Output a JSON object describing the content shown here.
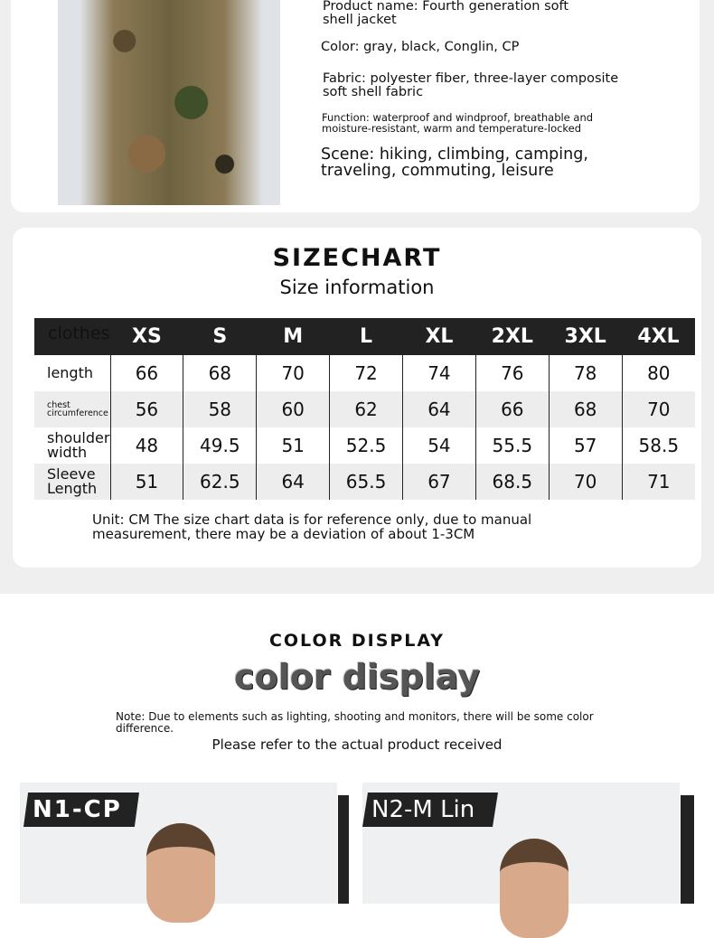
{
  "product": {
    "name": "Product name: Fourth generation soft shell jacket",
    "color": "Color: gray, black, Conglin, CP",
    "fabric": "Fabric: polyester fiber, three-layer composite soft shell fabric",
    "function": "Function: waterproof and windproof, breathable and moisture-resistant, warm and temperature-locked",
    "scene": "Scene: hiking, climbing, camping, traveling, commuting, leisure"
  },
  "size_chart": {
    "title": "SIZECHART",
    "subtitle": "Size information",
    "corner": "clothes",
    "sizes": [
      "XS",
      "S",
      "M",
      "L",
      "XL",
      "2XL",
      "3XL",
      "4XL"
    ],
    "rows": [
      {
        "label": "length",
        "values": [
          "66",
          "68",
          "70",
          "72",
          "74",
          "76",
          "78",
          "80"
        ]
      },
      {
        "label": "chest circumference",
        "values": [
          "56",
          "58",
          "60",
          "62",
          "64",
          "66",
          "68",
          "70"
        ]
      },
      {
        "label": "shoulder width",
        "values": [
          "48",
          "49.5",
          "51",
          "52.5",
          "54",
          "55.5",
          "57",
          "58.5"
        ]
      },
      {
        "label": "Sleeve Length",
        "values": [
          "51",
          "62.5",
          "64",
          "65.5",
          "67",
          "68.5",
          "70",
          "71"
        ]
      }
    ],
    "note": "Unit: CM The size chart data is for reference only, due to manual measurement, there may be a deviation of about 1-3CM"
  },
  "color_display": {
    "title": "COLOR DISPLAY",
    "subtitle": "color display",
    "note": "Note: Due to elements such as lighting, shooting and monitors, there will be some color difference.",
    "refer": "Please refer to the actual product received",
    "variants": [
      {
        "label": "N1-CP"
      },
      {
        "label": "N2-M Lin"
      }
    ]
  }
}
